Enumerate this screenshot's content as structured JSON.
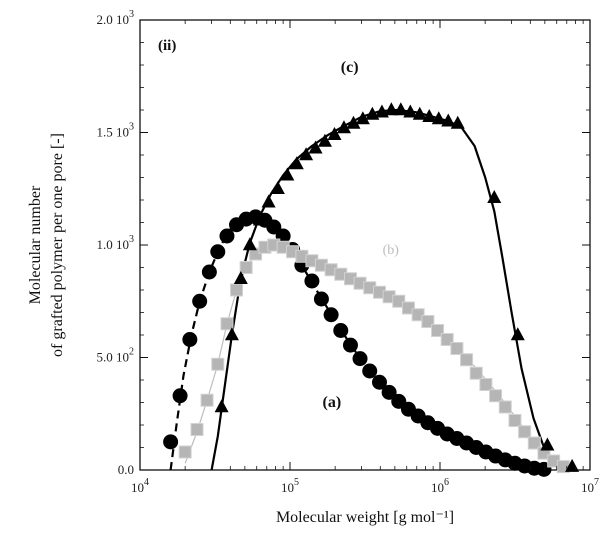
{
  "chart_data": {
    "type": "scatter",
    "panel_label": "(ii)",
    "xlabel": "Molecular weight [g mol⁻¹]",
    "ylabel_line1": "Molecular number",
    "ylabel_line2": "of grafted polymer per one pore [-]",
    "xscale": "log",
    "xlim": [
      10000,
      10000000
    ],
    "ylim": [
      0,
      2000
    ],
    "x_ticks": [
      {
        "value": 10000,
        "base": "10",
        "exp": "4"
      },
      {
        "value": 100000,
        "base": "10",
        "exp": "5"
      },
      {
        "value": 1000000,
        "base": "10",
        "exp": "6"
      },
      {
        "value": 10000000,
        "base": "10",
        "exp": "7"
      }
    ],
    "y_ticks": [
      {
        "value": 0,
        "mant": "0.0",
        "exp": ""
      },
      {
        "value": 500,
        "mant": "5.0 10",
        "exp": "2"
      },
      {
        "value": 1000,
        "mant": "1.0 10",
        "exp": "3"
      },
      {
        "value": 1500,
        "mant": "1.5 10",
        "exp": "3"
      },
      {
        "value": 2000,
        "mant": "2.0 10",
        "exp": "3"
      }
    ],
    "grid": false,
    "legend": "none",
    "series": [
      {
        "name": "(a)",
        "marker": "circle",
        "color": "#000000",
        "line": "dashed",
        "x": [
          16000,
          18500,
          21500,
          25000,
          29000,
          33000,
          38000,
          44000,
          51000,
          59000,
          68000,
          78000,
          90000,
          104000,
          120000,
          140000,
          162000,
          188000,
          218000,
          253000,
          293000,
          340000,
          395000,
          458000,
          531000,
          616000,
          715000,
          830000,
          963000,
          1117000,
          1296000,
          1503000,
          1744000,
          2023000,
          2347000,
          2723000,
          3159000,
          3665000,
          4252000,
          4933000
        ],
        "y": [
          125,
          330,
          580,
          750,
          880,
          970,
          1040,
          1090,
          1115,
          1125,
          1110,
          1080,
          1040,
          980,
          910,
          840,
          760,
          690,
          620,
          555,
          495,
          440,
          390,
          345,
          305,
          270,
          240,
          210,
          185,
          160,
          140,
          120,
          100,
          80,
          62,
          45,
          30,
          18,
          8,
          3
        ],
        "x_label_anchor": [
          190000
        ],
        "label_y": 240
      },
      {
        "name": "(b)",
        "marker": "square",
        "color": "#b5b5b5",
        "line": "solid-thin",
        "x": [
          20000,
          24000,
          28000,
          33000,
          38000,
          44000,
          51000,
          59000,
          68000,
          78000,
          90000,
          104000,
          120000,
          140000,
          162000,
          188000,
          218000,
          253000,
          293000,
          340000,
          395000,
          458000,
          531000,
          616000,
          715000,
          830000,
          963000,
          1117000,
          1296000,
          1503000,
          1744000,
          2023000,
          2347000,
          2723000,
          3159000,
          3665000,
          4252000,
          4933000,
          5723000,
          6640000
        ],
        "y": [
          80,
          180,
          310,
          470,
          650,
          800,
          900,
          960,
          990,
          1000,
          990,
          970,
          950,
          930,
          910,
          890,
          870,
          850,
          830,
          810,
          790,
          770,
          750,
          720,
          690,
          660,
          620,
          580,
          540,
          490,
          430,
          380,
          330,
          280,
          220,
          170,
          120,
          75,
          40,
          15
        ]
      },
      {
        "name": "(c)",
        "marker": "triangle",
        "color": "#000000",
        "line": "solid",
        "x": [
          35000,
          41000,
          47000,
          54000,
          63000,
          72000,
          83000,
          96000,
          111000,
          128000,
          148000,
          171000,
          198000,
          229000,
          265000,
          306000,
          354000,
          410000,
          474000,
          548000,
          634000,
          733000,
          848000,
          981000,
          1135000,
          1313000,
          2300000,
          3300000,
          5200000,
          7600000
        ],
        "y": [
          280,
          600,
          850,
          1000,
          1110,
          1190,
          1250,
          1310,
          1360,
          1400,
          1430,
          1460,
          1490,
          1520,
          1540,
          1560,
          1580,
          1590,
          1600,
          1600,
          1590,
          1580,
          1570,
          1560,
          1550,
          1540,
          1210,
          600,
          110,
          15
        ]
      }
    ],
    "curves": [
      {
        "series": "(a)",
        "dash": "8,5",
        "x": [
          16000,
          17500,
          19500,
          22000,
          25000,
          29000,
          34000,
          40000,
          47000,
          55000,
          65000,
          75000,
          88000,
          104000,
          125000,
          150000,
          185000,
          230000,
          290000,
          370000,
          480000,
          630000,
          850000,
          1150000,
          1600000,
          2200000,
          2900000,
          3700000,
          4500000,
          5200000
        ],
        "y": [
          0,
          200,
          420,
          600,
          750,
          880,
          990,
          1070,
          1110,
          1125,
          1115,
          1090,
          1040,
          970,
          890,
          800,
          700,
          600,
          500,
          410,
          330,
          260,
          200,
          150,
          100,
          60,
          30,
          12,
          4,
          0
        ]
      },
      {
        "series": "(b)",
        "dash": "",
        "x": [
          20000,
          24000,
          28000,
          33000,
          38000,
          44000,
          51000,
          59000,
          68000,
          78000,
          90000,
          110000,
          140000,
          190000,
          260000,
          350000,
          480000,
          650000,
          900000,
          1200000,
          1600000,
          2100000,
          2700000,
          3400000,
          4300000,
          5400000,
          6700000
        ],
        "y": [
          30,
          170,
          310,
          470,
          650,
          800,
          900,
          960,
          990,
          1000,
          990,
          965,
          930,
          885,
          840,
          800,
          760,
          710,
          640,
          570,
          480,
          390,
          300,
          210,
          120,
          40,
          0
        ]
      },
      {
        "series": "(c)",
        "dash": "",
        "x": [
          30000,
          33000,
          36000,
          41000,
          47000,
          54000,
          63000,
          75000,
          90000,
          110000,
          140000,
          180000,
          230000,
          300000,
          400000,
          520000,
          700000,
          900000,
          1150000,
          1400000,
          1700000,
          2000000,
          2300000,
          2600000,
          3000000,
          3500000,
          4200000,
          5000000,
          6000000,
          7500000
        ],
        "y": [
          0,
          150,
          330,
          600,
          850,
          1010,
          1130,
          1230,
          1310,
          1380,
          1440,
          1490,
          1530,
          1570,
          1595,
          1600,
          1590,
          1570,
          1550,
          1520,
          1440,
          1300,
          1150,
          950,
          700,
          450,
          230,
          90,
          25,
          0
        ]
      }
    ],
    "annotations": [
      {
        "text": "(a)",
        "style": "series-label",
        "x": 190000,
        "y": 280
      },
      {
        "text": "(b)",
        "style": "series-label-b",
        "x": 470000,
        "y": 960
      },
      {
        "text": "(c)",
        "style": "series-label",
        "x": 250000,
        "y": 1770
      }
    ]
  }
}
